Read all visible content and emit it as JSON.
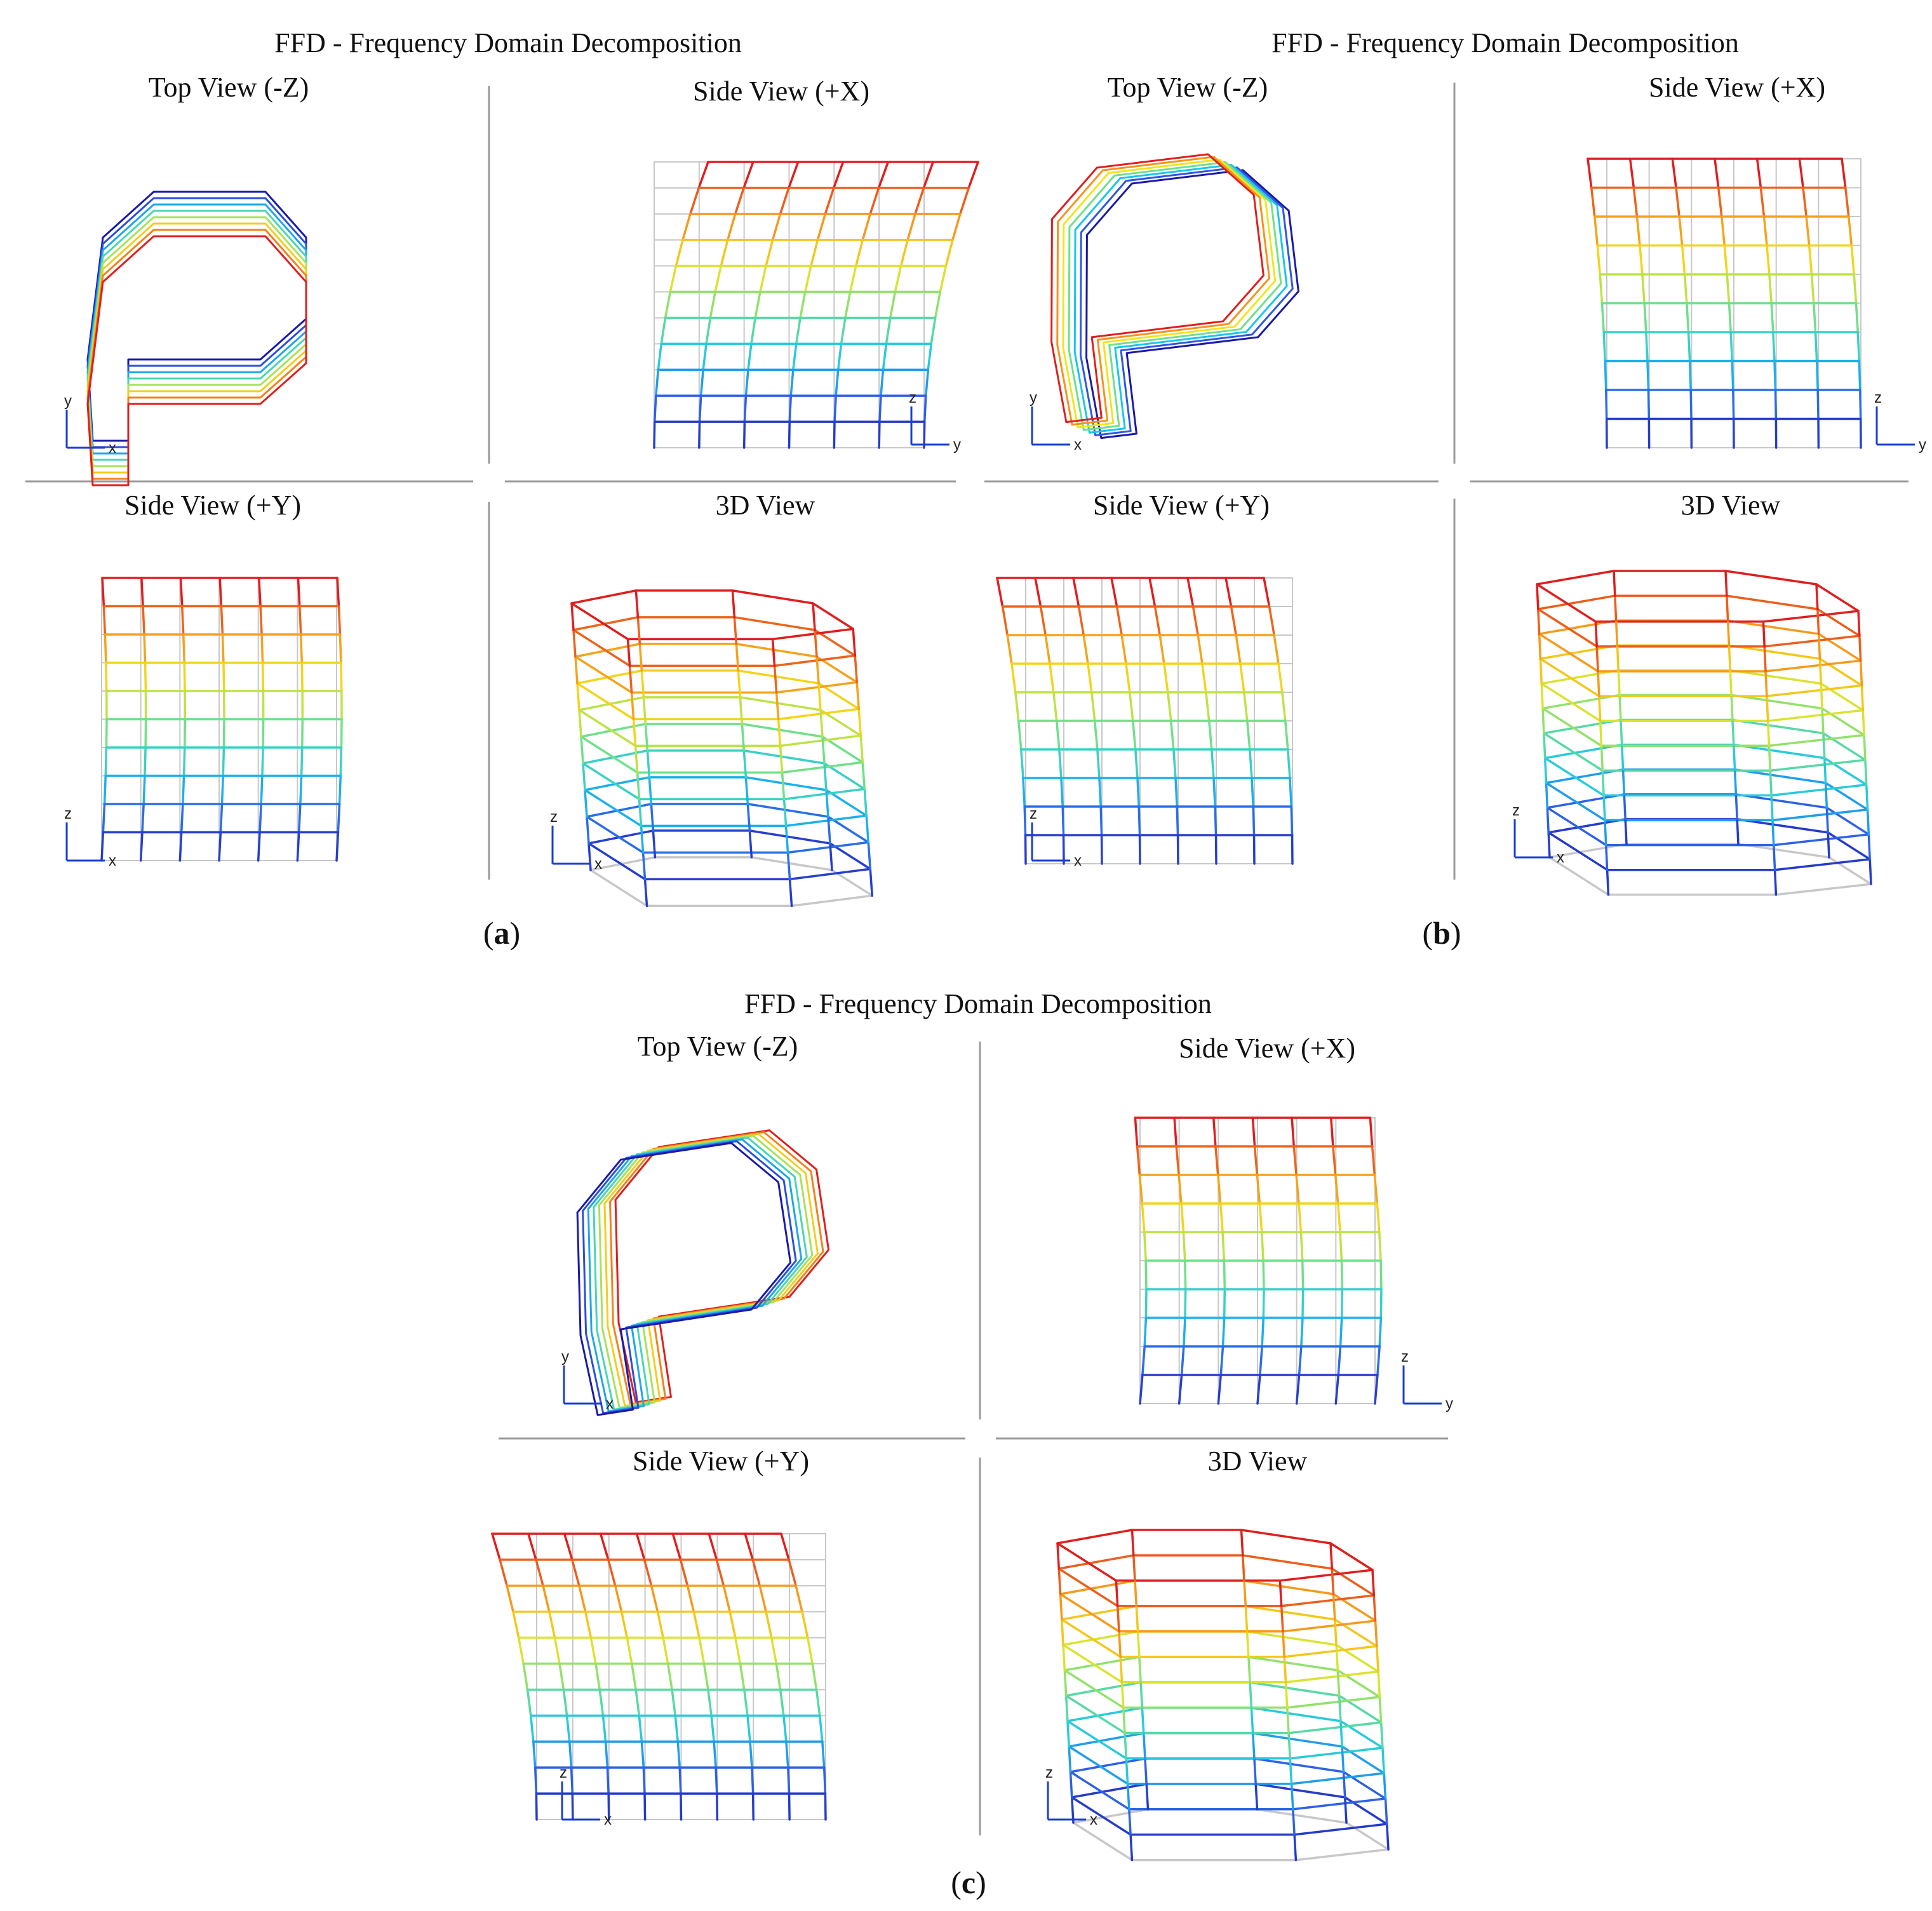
{
  "figure_title": "FFD - Frequency Domain Decomposition",
  "views": {
    "top": "Top View (-Z)",
    "side_x": "Side View (+X)",
    "side_y": "Side View (+Y)",
    "three_d": "3D View"
  },
  "axis_labels": {
    "x": "x",
    "y": "y",
    "z": "z"
  },
  "panels": [
    {
      "id": "a",
      "label_open": "(",
      "label_letter": "a",
      "label_close": ")"
    },
    {
      "id": "b",
      "label_open": "(",
      "label_letter": "b",
      "label_close": ")"
    },
    {
      "id": "c",
      "label_open": "(",
      "label_letter": "c",
      "label_close": ")"
    }
  ],
  "colors": {
    "scale": [
      "#1a1aa8",
      "#2f57e6",
      "#17c6ee",
      "#6fe08a",
      "#f2e41c",
      "#f6931b",
      "#e01e1e"
    ],
    "grid": "#c8c8c8",
    "divider": "#9a9a9a",
    "axis": "#1a3fd0"
  }
}
